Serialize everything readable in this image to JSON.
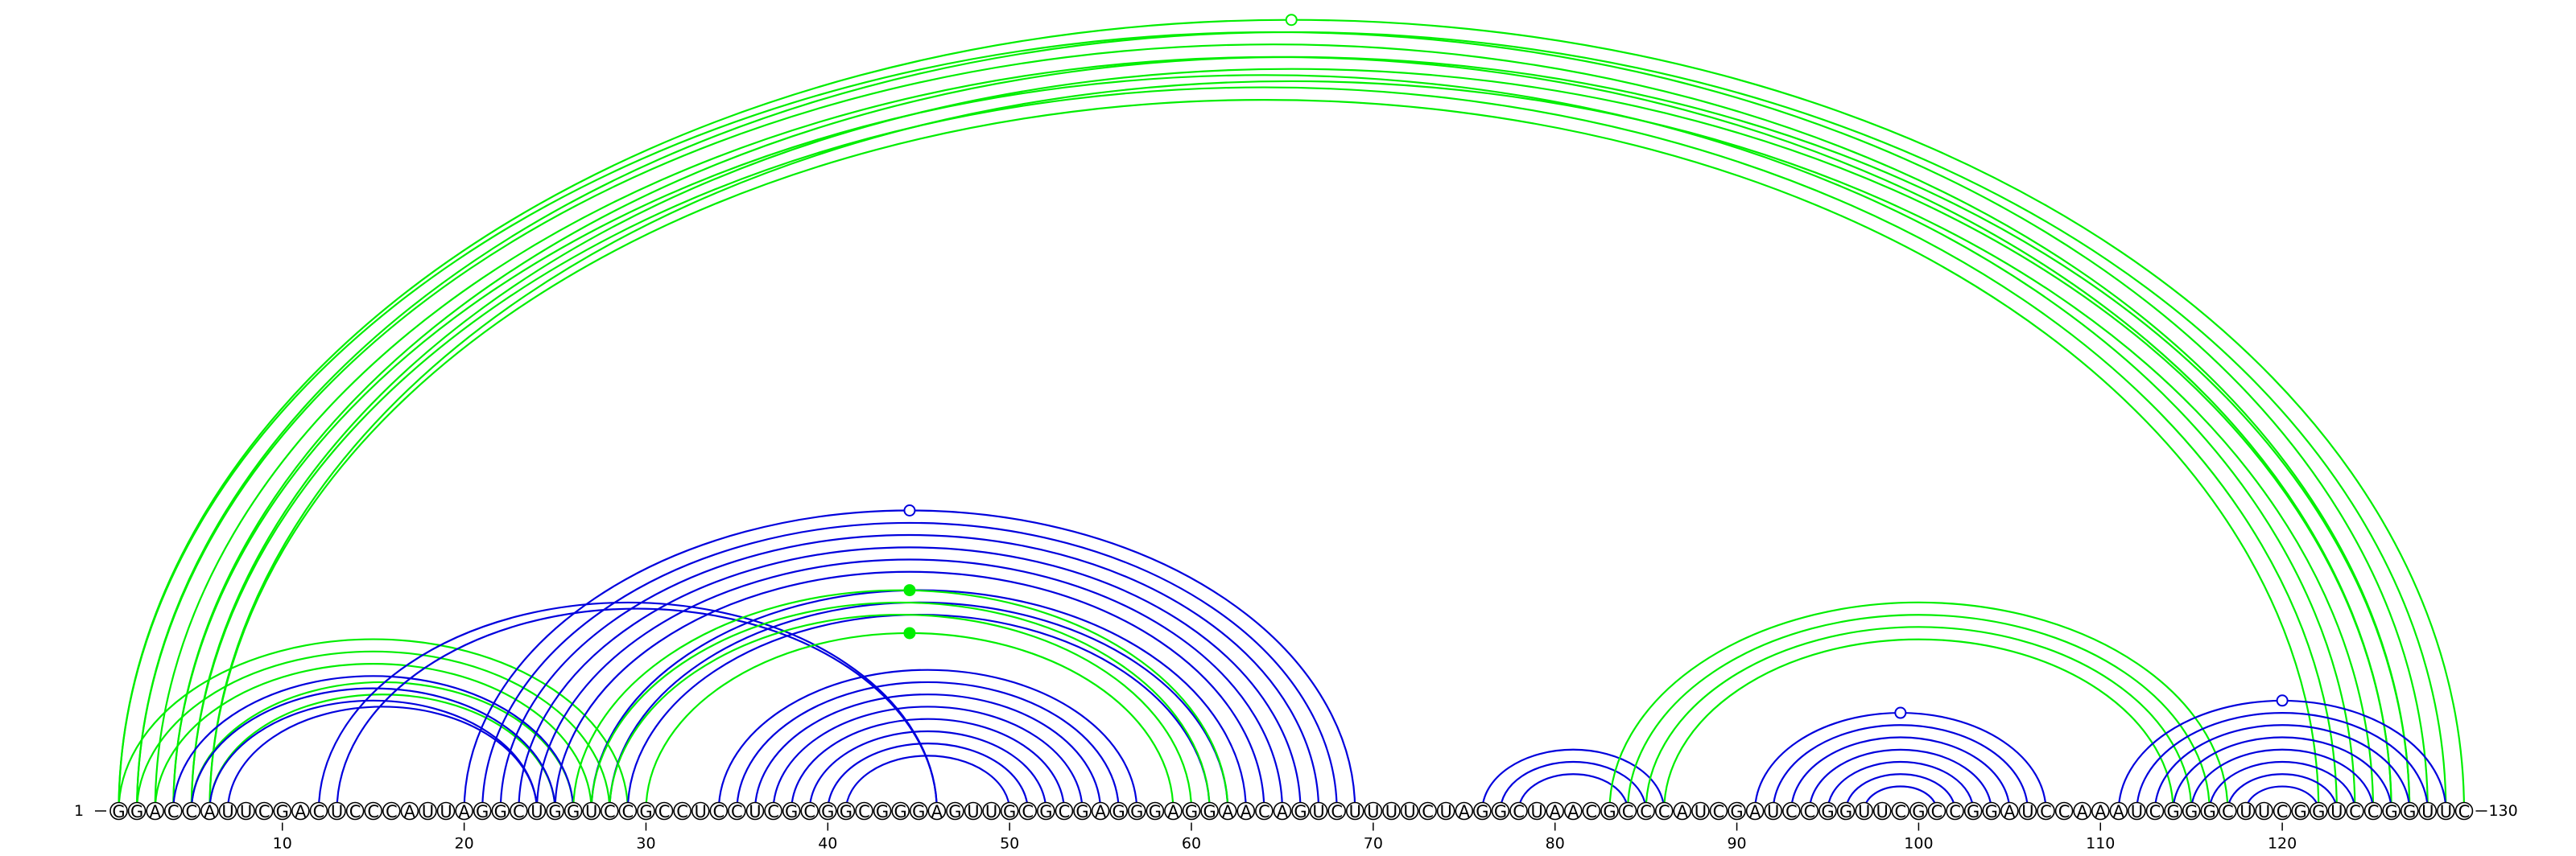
{
  "sequence": "GGACCAUUCGACUCCCAUUAGGCUGGUCCGCCUCCUCGCGGCGGGAGUUGCGCGAGGGAGGAACAGUCUUUUCUAGGCUAACGCCCAUCGAUCCGGUUCGCCGGAUCCAAAUCGGGCUUCGGUCCGGUUC",
  "start_label": "1",
  "end_label": "130",
  "ticks": [
    10,
    20,
    30,
    40,
    50,
    60,
    70,
    80,
    90,
    100,
    110,
    120
  ],
  "colors": {
    "green": "#00ee00",
    "blue": "#0000dd",
    "outline": "#000000"
  },
  "chart_data": {
    "type": "arc-diagram",
    "length": 130,
    "arc_groups": [
      {
        "color": "green",
        "pairs": [
          [
            1,
            128
          ],
          [
            2,
            127
          ],
          [
            3,
            126
          ],
          [
            4,
            124
          ],
          [
            5,
            123
          ],
          [
            6,
            122
          ],
          [
            2,
            129
          ],
          [
            4,
            127
          ],
          [
            5,
            126
          ],
          [
            6,
            125
          ],
          [
            1,
            130
          ]
        ],
        "markers": [
          {
            "pos": 65.5,
            "style": "open"
          }
        ]
      },
      {
        "color": "green",
        "pairs": [
          [
            1,
            29
          ],
          [
            2,
            28
          ],
          [
            3,
            27
          ],
          [
            5,
            26
          ],
          [
            6,
            25
          ]
        ]
      },
      {
        "color": "blue",
        "pairs": [
          [
            4,
            26
          ],
          [
            5,
            25
          ],
          [
            6,
            24
          ],
          [
            7,
            24
          ]
        ]
      },
      {
        "color": "blue",
        "pairs": [
          [
            12,
            46
          ],
          [
            13,
            46
          ]
        ]
      },
      {
        "color": "blue",
        "pairs": [
          [
            20,
            69
          ],
          [
            21,
            68
          ],
          [
            22,
            67
          ],
          [
            23,
            66
          ],
          [
            24,
            65
          ],
          [
            25,
            64
          ],
          [
            27,
            63
          ],
          [
            28,
            62
          ],
          [
            29,
            61
          ]
        ],
        "markers": [
          {
            "pos": 44.5,
            "style": "open"
          }
        ]
      },
      {
        "color": "green",
        "pairs": [
          [
            26,
            62
          ],
          [
            27,
            61
          ],
          [
            28,
            60
          ],
          [
            30,
            59
          ]
        ],
        "markers": [
          {
            "pos": 44.5,
            "style": "filled"
          },
          {
            "pos": 44.5,
            "style": "filled",
            "inner": true
          }
        ]
      },
      {
        "color": "blue",
        "pairs": [
          [
            34,
            57
          ],
          [
            35,
            56
          ],
          [
            36,
            55
          ],
          [
            37,
            54
          ],
          [
            38,
            53
          ],
          [
            39,
            52
          ],
          [
            40,
            51
          ],
          [
            41,
            50
          ]
        ]
      },
      {
        "color": "blue",
        "pairs": [
          [
            76,
            86
          ],
          [
            77,
            85
          ],
          [
            78,
            84
          ]
        ]
      },
      {
        "color": "green",
        "pairs": [
          [
            83,
            117
          ],
          [
            84,
            116
          ],
          [
            85,
            115
          ],
          [
            86,
            114
          ]
        ]
      },
      {
        "color": "blue",
        "pairs": [
          [
            91,
            107
          ],
          [
            92,
            106
          ],
          [
            93,
            105
          ],
          [
            94,
            104
          ],
          [
            95,
            103
          ],
          [
            96,
            102
          ],
          [
            97,
            101
          ]
        ],
        "markers": [
          {
            "pos": 99,
            "style": "open"
          }
        ]
      },
      {
        "color": "blue",
        "pairs": [
          [
            111,
            129
          ],
          [
            112,
            128
          ],
          [
            113,
            127
          ],
          [
            114,
            126
          ],
          [
            115,
            125
          ],
          [
            116,
            124
          ],
          [
            117,
            123
          ],
          [
            118,
            122
          ]
        ],
        "markers": [
          {
            "pos": 120,
            "style": "open"
          }
        ]
      }
    ]
  }
}
